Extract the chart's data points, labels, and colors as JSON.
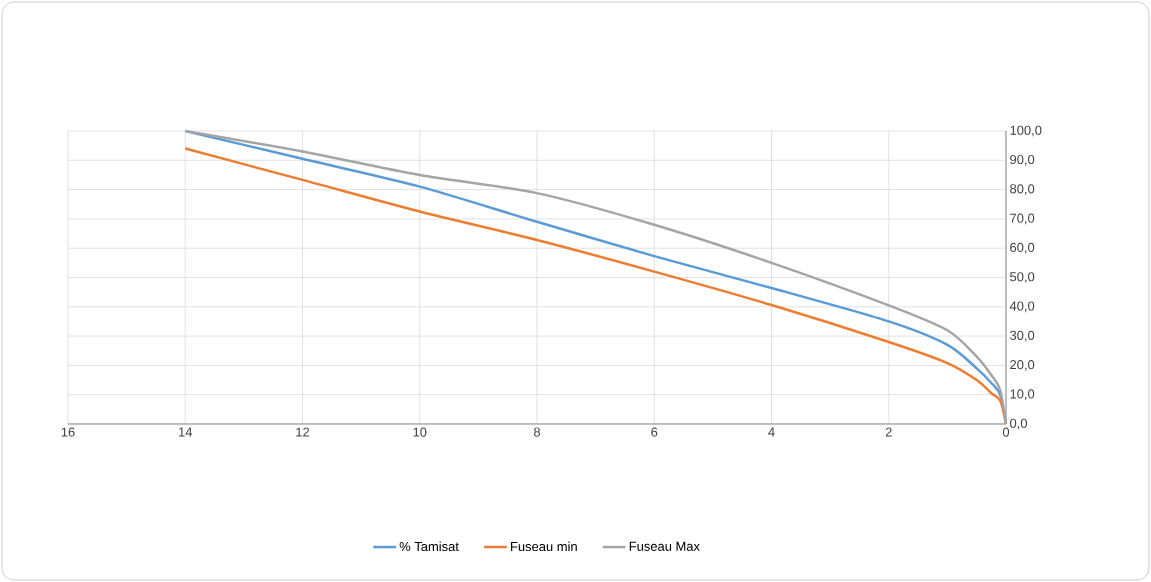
{
  "chart_data": {
    "type": "line",
    "x": [
      14,
      12,
      10,
      8,
      6,
      4,
      2,
      1,
      0.5,
      0.25,
      0.1,
      0
    ],
    "series": [
      {
        "name": "% Tamisat",
        "color": "#5b9bd5",
        "values": [
          100,
          90.5,
          81,
          69,
          57.3,
          46.4,
          35,
          27,
          19,
          14,
          10,
          0
        ]
      },
      {
        "name": "Fuseau min",
        "color": "#ed7d31",
        "values": [
          94,
          83.3,
          72.5,
          62.8,
          52,
          40.6,
          28,
          20.8,
          15,
          10.5,
          8,
          0
        ]
      },
      {
        "name": "Fuseau Max",
        "color": "#a5a5a5",
        "values": [
          100,
          93,
          85,
          78.8,
          68,
          55,
          40.5,
          32,
          23,
          16.7,
          11.6,
          0
        ]
      }
    ],
    "xlim": [
      16,
      0
    ],
    "xticks": [
      16,
      14,
      12,
      10,
      8,
      6,
      4,
      2,
      0
    ],
    "ylim": [
      0,
      100
    ],
    "yticks": [
      {
        "value": 0,
        "label": "0,0"
      },
      {
        "value": 10,
        "label": "10,0"
      },
      {
        "value": 20,
        "label": "20,0"
      },
      {
        "value": 30,
        "label": "30,0"
      },
      {
        "value": 40,
        "label": "40,0"
      },
      {
        "value": 50,
        "label": "50,0"
      },
      {
        "value": 60,
        "label": "60,0"
      },
      {
        "value": 70,
        "label": "70,0"
      },
      {
        "value": 80,
        "label": "80,0"
      },
      {
        "value": 90,
        "label": "90,0"
      },
      {
        "value": 100,
        "label": "100,0"
      }
    ],
    "grid": true,
    "legend": "bottom",
    "marker": "none",
    "line_style": "solid"
  }
}
